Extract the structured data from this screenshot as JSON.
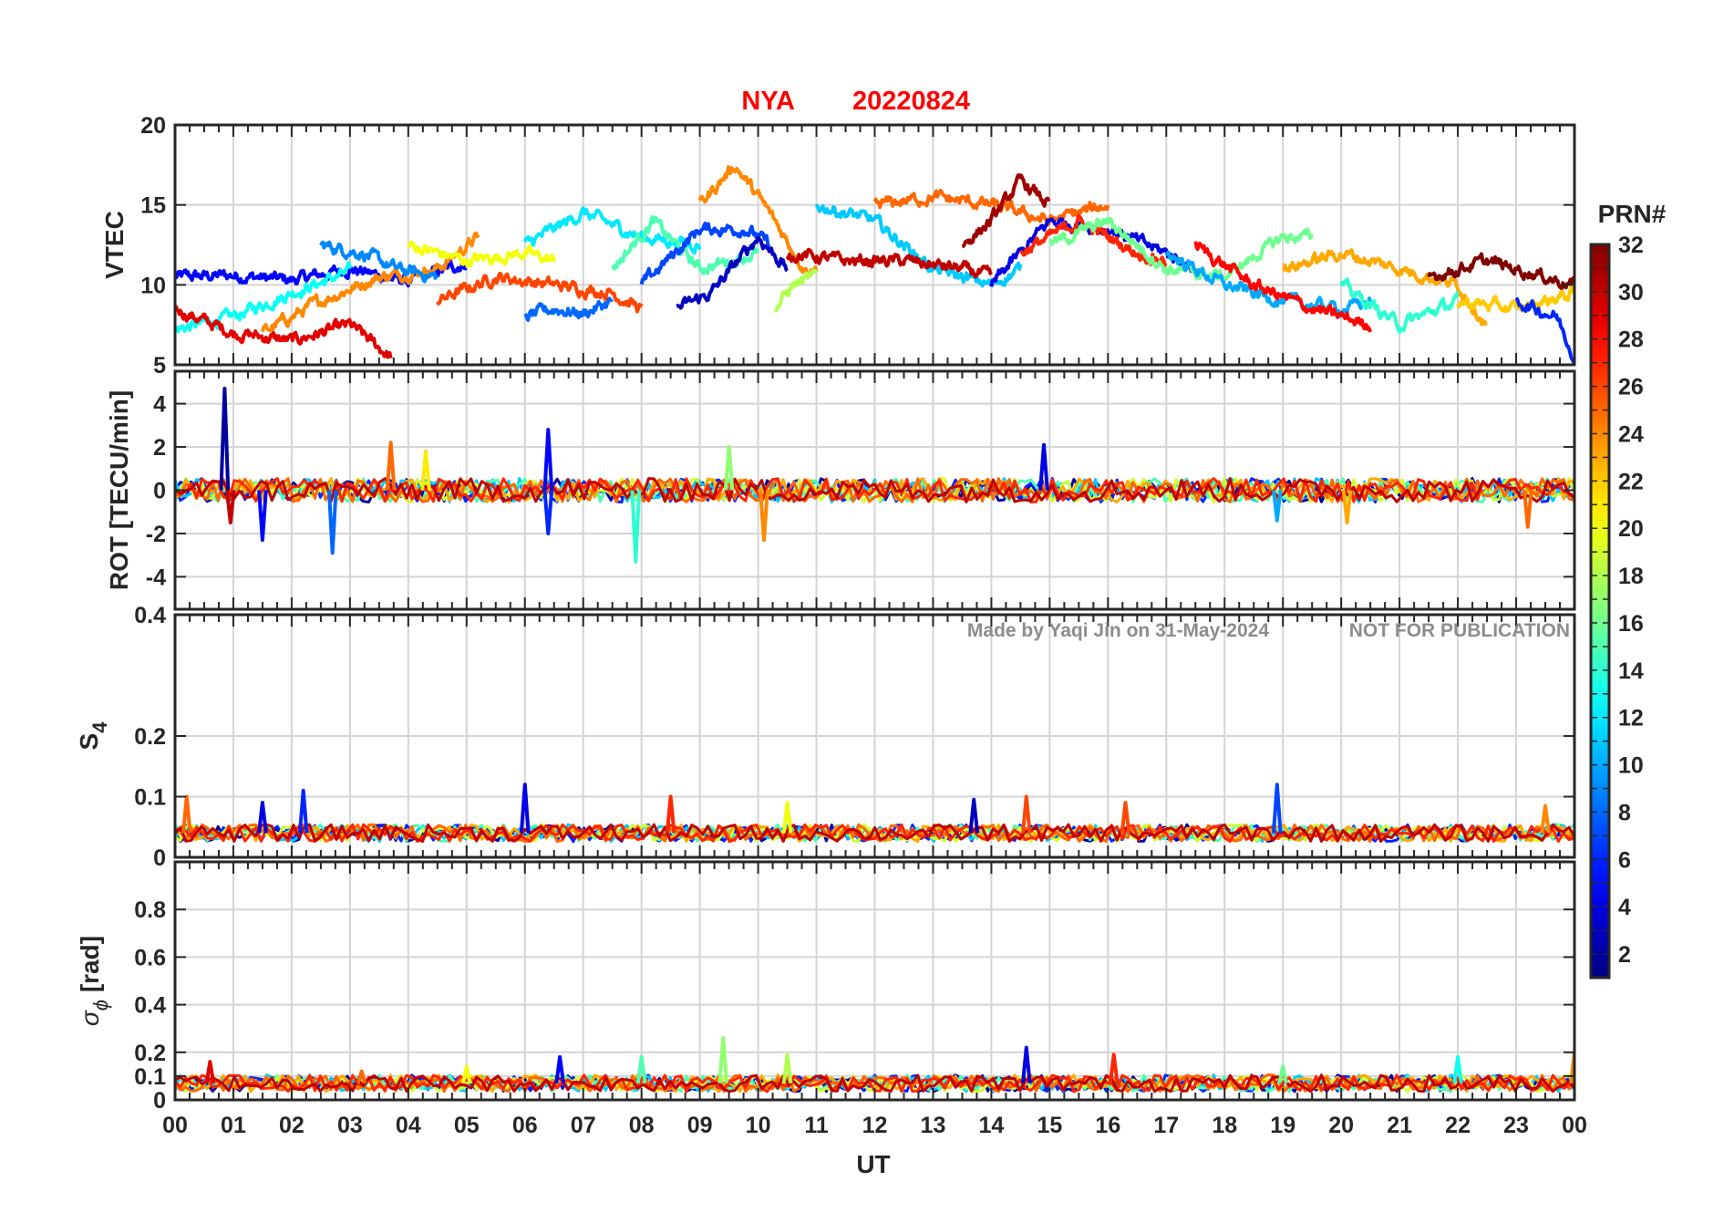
{
  "chart_data": {
    "type": "line",
    "title_station": "NYA",
    "title_date": "20220824",
    "title_color": "#ff0000",
    "xlabel": "UT",
    "xlim": [
      0,
      24
    ],
    "x_tick_labels": [
      "00",
      "01",
      "02",
      "03",
      "04",
      "05",
      "06",
      "07",
      "08",
      "09",
      "10",
      "11",
      "12",
      "13",
      "14",
      "15",
      "16",
      "17",
      "18",
      "19",
      "20",
      "21",
      "22",
      "23",
      "00"
    ],
    "watermark": "Made by Yaqi Jin on 31-May-2024",
    "watermark_note": "NOT FOR PUBLICATION",
    "panels": [
      {
        "id": "vtec",
        "ylabel": "VTEC",
        "ylim": [
          5,
          20
        ],
        "y_ticks": [
          5,
          10,
          15,
          20
        ],
        "y_tick_labels": [
          "5",
          "10",
          "15",
          "20"
        ],
        "series": [
          {
            "prn": 5,
            "start": 0.0,
            "end": 5.0,
            "points": [
              [
                0,
                10.5
              ],
              [
                1,
                10.6
              ],
              [
                2,
                10.3
              ],
              [
                3,
                11.0
              ],
              [
                4,
                10.2
              ],
              [
                5,
                11.4
              ]
            ]
          },
          {
            "prn": 13,
            "start": 0.0,
            "end": 3.0,
            "points": [
              [
                0,
                7.2
              ],
              [
                1,
                8.0
              ],
              [
                2,
                9.5
              ],
              [
                3,
                10.8
              ]
            ]
          },
          {
            "prn": 29,
            "start": 0.0,
            "end": 3.7,
            "points": [
              [
                0,
                8.5
              ],
              [
                1,
                7.0
              ],
              [
                2,
                6.5
              ],
              [
                3,
                7.5
              ],
              [
                3.7,
                5.5
              ]
            ]
          },
          {
            "prn": 24,
            "start": 1.5,
            "end": 5.2,
            "points": [
              [
                1.5,
                7.0
              ],
              [
                2.5,
                9.0
              ],
              [
                3.5,
                10.5
              ],
              [
                4.5,
                11.0
              ],
              [
                5.2,
                13.0
              ]
            ]
          },
          {
            "prn": 9,
            "start": 2.5,
            "end": 4.5,
            "points": [
              [
                2.5,
                12.5
              ],
              [
                3.2,
                12.0
              ],
              [
                3.8,
                11.0
              ],
              [
                4.5,
                10.5
              ]
            ]
          },
          {
            "prn": 20,
            "start": 4.0,
            "end": 6.5,
            "points": [
              [
                4,
                12.5
              ],
              [
                5,
                11.5
              ],
              [
                6,
                12.0
              ],
              [
                6.5,
                11.5
              ]
            ]
          },
          {
            "prn": 26,
            "start": 4.5,
            "end": 8.0,
            "points": [
              [
                4.5,
                9.0
              ],
              [
                5.5,
                10.5
              ],
              [
                6.5,
                10.0
              ],
              [
                7.5,
                9.5
              ],
              [
                8,
                8.5
              ]
            ]
          },
          {
            "prn": 8,
            "start": 6.0,
            "end": 7.5,
            "points": [
              [
                6,
                8.0
              ],
              [
                6.5,
                8.5
              ],
              [
                7,
                8.2
              ],
              [
                7.5,
                9.0
              ]
            ]
          },
          {
            "prn": 12,
            "start": 6.0,
            "end": 9.0,
            "points": [
              [
                6,
                12.5
              ],
              [
                7,
                14.5
              ],
              [
                8,
                13.0
              ],
              [
                9,
                12.5
              ]
            ]
          },
          {
            "prn": 15,
            "start": 7.5,
            "end": 10.0,
            "points": [
              [
                7.5,
                11.0
              ],
              [
                8.2,
                14.0
              ],
              [
                9,
                11.0
              ],
              [
                10,
                12.0
              ]
            ]
          },
          {
            "prn": 7,
            "start": 8.0,
            "end": 10.2,
            "points": [
              [
                8,
                10.0
              ],
              [
                9,
                13.5
              ],
              [
                9.8,
                13.5
              ],
              [
                10.2,
                12.5
              ]
            ]
          },
          {
            "prn": 3,
            "start": 8.6,
            "end": 10.5,
            "points": [
              [
                8.6,
                8.5
              ],
              [
                9.2,
                9.5
              ],
              [
                10,
                13.0
              ],
              [
                10.5,
                11.0
              ]
            ]
          },
          {
            "prn": 24,
            "start": 9.0,
            "end": 11.0,
            "points": [
              [
                9,
                15.0
              ],
              [
                9.6,
                17.5
              ],
              [
                10.2,
                14.5
              ],
              [
                10.8,
                11.0
              ]
            ]
          },
          {
            "prn": 18,
            "start": 10.3,
            "end": 11.0,
            "points": [
              [
                10.3,
                8.5
              ],
              [
                10.6,
                10.0
              ],
              [
                11,
                10.5
              ]
            ]
          },
          {
            "prn": 11,
            "start": 11.0,
            "end": 14.5,
            "points": [
              [
                11,
                15.0
              ],
              [
                12,
                14.0
              ],
              [
                13,
                11.0
              ],
              [
                14,
                10.0
              ],
              [
                14.5,
                11.0
              ]
            ]
          },
          {
            "prn": 30,
            "start": 10.5,
            "end": 14.0,
            "points": [
              [
                10.5,
                12.0
              ],
              [
                11.5,
                11.5
              ],
              [
                12.5,
                11.5
              ],
              [
                13.5,
                11.0
              ],
              [
                14,
                10.5
              ]
            ]
          },
          {
            "prn": 25,
            "start": 12.0,
            "end": 16.0,
            "points": [
              [
                12,
                15.0
              ],
              [
                13,
                15.5
              ],
              [
                14,
                15.0
              ],
              [
                15,
                14.0
              ],
              [
                16,
                15.0
              ]
            ]
          },
          {
            "prn": 31,
            "start": 13.5,
            "end": 15.0,
            "points": [
              [
                13.5,
                12.5
              ],
              [
                14,
                14.0
              ],
              [
                14.5,
                16.5
              ],
              [
                15,
                15.0
              ]
            ]
          },
          {
            "prn": 4,
            "start": 14.0,
            "end": 17.5,
            "points": [
              [
                14,
                10.0
              ],
              [
                15,
                14.0
              ],
              [
                16,
                13.5
              ],
              [
                17,
                12.0
              ],
              [
                17.5,
                11.0
              ]
            ]
          },
          {
            "prn": 27,
            "start": 14.5,
            "end": 17.0,
            "points": [
              [
                14.5,
                12.0
              ],
              [
                15.5,
                14.0
              ],
              [
                16.5,
                12.0
              ],
              [
                17,
                11.5
              ]
            ]
          },
          {
            "prn": 16,
            "start": 15.0,
            "end": 19.5,
            "points": [
              [
                15,
                12.5
              ],
              [
                16,
                14.0
              ],
              [
                17,
                11.0
              ],
              [
                18,
                10.5
              ],
              [
                19,
                13.0
              ],
              [
                19.5,
                13.0
              ]
            ]
          },
          {
            "prn": 10,
            "start": 17.0,
            "end": 20.5,
            "points": [
              [
                17,
                12.0
              ],
              [
                18,
                10.0
              ],
              [
                19,
                9.0
              ],
              [
                20,
                8.5
              ],
              [
                20.5,
                9.0
              ]
            ]
          },
          {
            "prn": 28,
            "start": 17.5,
            "end": 20.5,
            "points": [
              [
                17.5,
                12.5
              ],
              [
                18.5,
                10.0
              ],
              [
                19.5,
                8.5
              ],
              [
                20.5,
                7.5
              ]
            ]
          },
          {
            "prn": 23,
            "start": 19.0,
            "end": 22.5,
            "points": [
              [
                19,
                11.0
              ],
              [
                20,
                12.0
              ],
              [
                21,
                11.0
              ],
              [
                22,
                10.0
              ],
              [
                22.5,
                7.5
              ]
            ]
          },
          {
            "prn": 14,
            "start": 20.0,
            "end": 22.0,
            "points": [
              [
                20,
                10.0
              ],
              [
                21,
                7.5
              ],
              [
                22,
                9.0
              ]
            ]
          },
          {
            "prn": 32,
            "start": 21.5,
            "end": 24.0,
            "points": [
              [
                21.5,
                10.5
              ],
              [
                22.5,
                11.5
              ],
              [
                23.5,
                10.5
              ],
              [
                24,
                10.0
              ]
            ]
          },
          {
            "prn": 22,
            "start": 22.0,
            "end": 24.0,
            "points": [
              [
                22,
                9.0
              ],
              [
                23,
                8.5
              ],
              [
                24,
                9.5
              ]
            ]
          },
          {
            "prn": 6,
            "start": 23.0,
            "end": 24.0,
            "points": [
              [
                23,
                9.0
              ],
              [
                23.7,
                8.0
              ],
              [
                24,
                5.5
              ]
            ]
          }
        ]
      },
      {
        "id": "rot",
        "ylabel": "ROT [TECU/min]",
        "ylim": [
          -5.5,
          5.5
        ],
        "y_ticks": [
          -4,
          -2,
          0,
          2,
          4
        ],
        "y_tick_labels": [
          "-4",
          "-2",
          "0",
          "2",
          "4"
        ],
        "baseline": 0,
        "spikes": [
          [
            0.85,
            4.7,
            2
          ],
          [
            0.95,
            -1.5,
            30
          ],
          [
            1.5,
            -2.3,
            5
          ],
          [
            2.7,
            -2.9,
            8
          ],
          [
            3.7,
            2.2,
            25
          ],
          [
            4.3,
            1.8,
            21
          ],
          [
            6.4,
            2.8,
            5
          ],
          [
            6.4,
            -2.0,
            6
          ],
          [
            7.9,
            -3.3,
            14
          ],
          [
            9.5,
            2.0,
            17
          ],
          [
            10.1,
            -2.3,
            24
          ],
          [
            14.9,
            2.1,
            4
          ],
          [
            18.9,
            -1.4,
            10
          ],
          [
            20.1,
            -1.5,
            23
          ],
          [
            23.2,
            -1.7,
            25
          ]
        ]
      },
      {
        "id": "s4",
        "ylabel": "S",
        "ylabel_sub": "4",
        "ylim": [
          0,
          0.4
        ],
        "y_ticks": [
          0,
          0.1,
          0.2,
          0.4
        ],
        "y_tick_labels": [
          "0",
          "0.1",
          "0.2",
          "0.4"
        ],
        "baseline": 0.04,
        "spikes": [
          [
            0.2,
            0.1,
            25
          ],
          [
            1.5,
            0.09,
            4
          ],
          [
            2.2,
            0.11,
            6
          ],
          [
            6.0,
            0.12,
            4
          ],
          [
            8.5,
            0.1,
            27
          ],
          [
            10.5,
            0.09,
            20
          ],
          [
            13.7,
            0.095,
            3
          ],
          [
            14.6,
            0.1,
            26
          ],
          [
            16.3,
            0.09,
            26
          ],
          [
            18.9,
            0.12,
            7
          ],
          [
            23.5,
            0.085,
            24
          ]
        ]
      },
      {
        "id": "sigma_phi",
        "ylabel": "σ",
        "ylabel_sub": "ϕ",
        "ylabel_unit": "[rad]",
        "ylim": [
          0,
          1
        ],
        "y_ticks": [
          0,
          0.1,
          0.2,
          0.4,
          0.6,
          0.8
        ],
        "y_tick_labels": [
          "0",
          "0.1",
          "0.2",
          "0.4",
          "0.6",
          "0.8"
        ],
        "baseline": 0.07,
        "spikes": [
          [
            0.6,
            0.16,
            29
          ],
          [
            3.2,
            0.12,
            25
          ],
          [
            5.0,
            0.14,
            20
          ],
          [
            6.6,
            0.18,
            5
          ],
          [
            8.0,
            0.18,
            15
          ],
          [
            9.4,
            0.26,
            17
          ],
          [
            10.5,
            0.19,
            18
          ],
          [
            14.6,
            0.22,
            4
          ],
          [
            16.1,
            0.19,
            27
          ],
          [
            19.0,
            0.14,
            16
          ],
          [
            22.0,
            0.18,
            13
          ],
          [
            24.0,
            0.2,
            24
          ]
        ]
      }
    ],
    "colorbar": {
      "title": "PRN#",
      "range": [
        1,
        32
      ],
      "ticks": [
        2,
        4,
        6,
        8,
        10,
        12,
        14,
        16,
        18,
        20,
        22,
        24,
        26,
        28,
        30,
        32
      ],
      "colormap": "jet"
    }
  }
}
